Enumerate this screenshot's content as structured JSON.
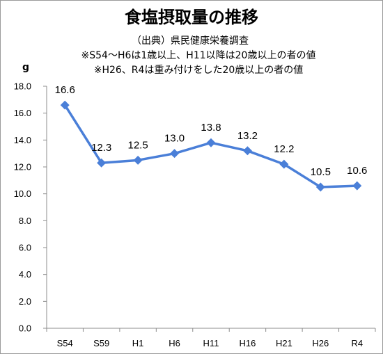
{
  "chart_data": {
    "type": "line",
    "title": "食塩摂取量の推移",
    "subtitles": [
      "（出典）県民健康栄養調査",
      "※S54～H6は1歳以上、H11以降は20歳以上の者の値",
      "※H26、R4は重み付けをした20歳以上の者の値"
    ],
    "ylabel": "g",
    "xlabel": "",
    "categories": [
      "S54",
      "S59",
      "H1",
      "H6",
      "H11",
      "H16",
      "H21",
      "H26",
      "R4"
    ],
    "series": [
      {
        "values": [
          16.6,
          12.3,
          12.5,
          13.0,
          13.8,
          13.2,
          12.2,
          10.5,
          10.6
        ],
        "labels": [
          "16.6",
          "12.3",
          "12.5",
          "13.0",
          "13.8",
          "13.2",
          "12.2",
          "10.5",
          "10.6"
        ]
      }
    ],
    "ylim": [
      0,
      18
    ],
    "yticks": [
      "0.0",
      "2.0",
      "4.0",
      "6.0",
      "8.0",
      "10.0",
      "12.0",
      "14.0",
      "16.0",
      "18.0"
    ],
    "grid": false,
    "legend": "none",
    "colors": {
      "line": "#4a7fd8",
      "marker": "#4a7fd8",
      "axis": "#8c8c8c"
    }
  }
}
